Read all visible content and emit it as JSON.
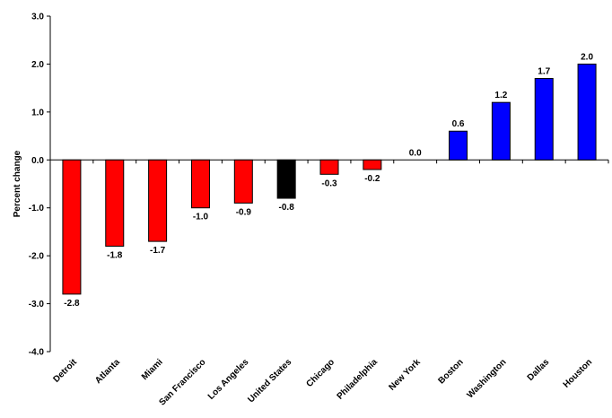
{
  "chart_data": {
    "type": "bar",
    "ylabel": "Percent change",
    "ylim": [
      -4.0,
      3.0
    ],
    "y_ticks": [
      "3.0",
      "2.0",
      "1.0",
      "0.0",
      "-1.0",
      "-2.0",
      "-3.0",
      "-4.0"
    ],
    "grid": false,
    "categories": [
      "Detroit",
      "Atlanta",
      "Miami",
      "San Francisco",
      "Los Angeles",
      "United States",
      "Chicago",
      "Philadelphia",
      "New York",
      "Boston",
      "Washington",
      "Dallas",
      "Houston"
    ],
    "values": [
      -2.8,
      -1.8,
      -1.7,
      -1.0,
      -0.9,
      -0.8,
      -0.3,
      -0.2,
      0.0,
      0.6,
      1.2,
      1.7,
      2.0
    ],
    "value_labels": [
      "-2.8",
      "-1.8",
      "-1.7",
      "-1.0",
      "-0.9",
      "-0.8",
      "-0.3",
      "-0.2",
      "0.0",
      "0.6",
      "1.2",
      "1.7",
      "2.0"
    ],
    "bar_colors": [
      "#ff0000",
      "#ff0000",
      "#ff0000",
      "#ff0000",
      "#ff0000",
      "#000000",
      "#ff0000",
      "#ff0000",
      "#ff0000",
      "#0000ff",
      "#0000ff",
      "#0000ff",
      "#0000ff"
    ]
  }
}
